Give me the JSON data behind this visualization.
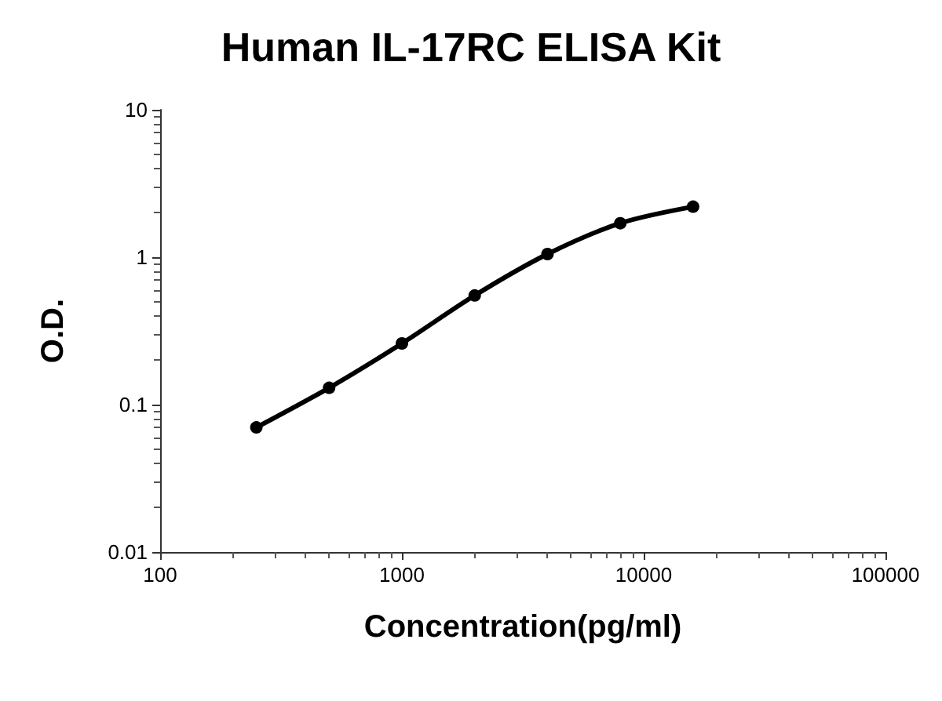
{
  "chart_data": {
    "type": "line",
    "title": "Human IL-17RC ELISA Kit",
    "xlabel": "Concentration(pg/ml)",
    "ylabel": "O.D.",
    "x": [
      250,
      500,
      1000,
      2000,
      4000,
      8000,
      16000
    ],
    "series": [
      {
        "color": "#000000",
        "values": [
          0.07,
          0.13,
          0.26,
          0.55,
          1.05,
          1.7,
          2.2
        ]
      }
    ],
    "log": "xy",
    "xlim": [
      100,
      100000
    ],
    "ylim": [
      0.01,
      10
    ],
    "xticks": [
      100,
      1000,
      10000,
      100000
    ],
    "yticks": [
      0.01,
      0.1,
      1,
      10
    ],
    "grid": false,
    "marker": "circle",
    "line_style": "solid"
  }
}
